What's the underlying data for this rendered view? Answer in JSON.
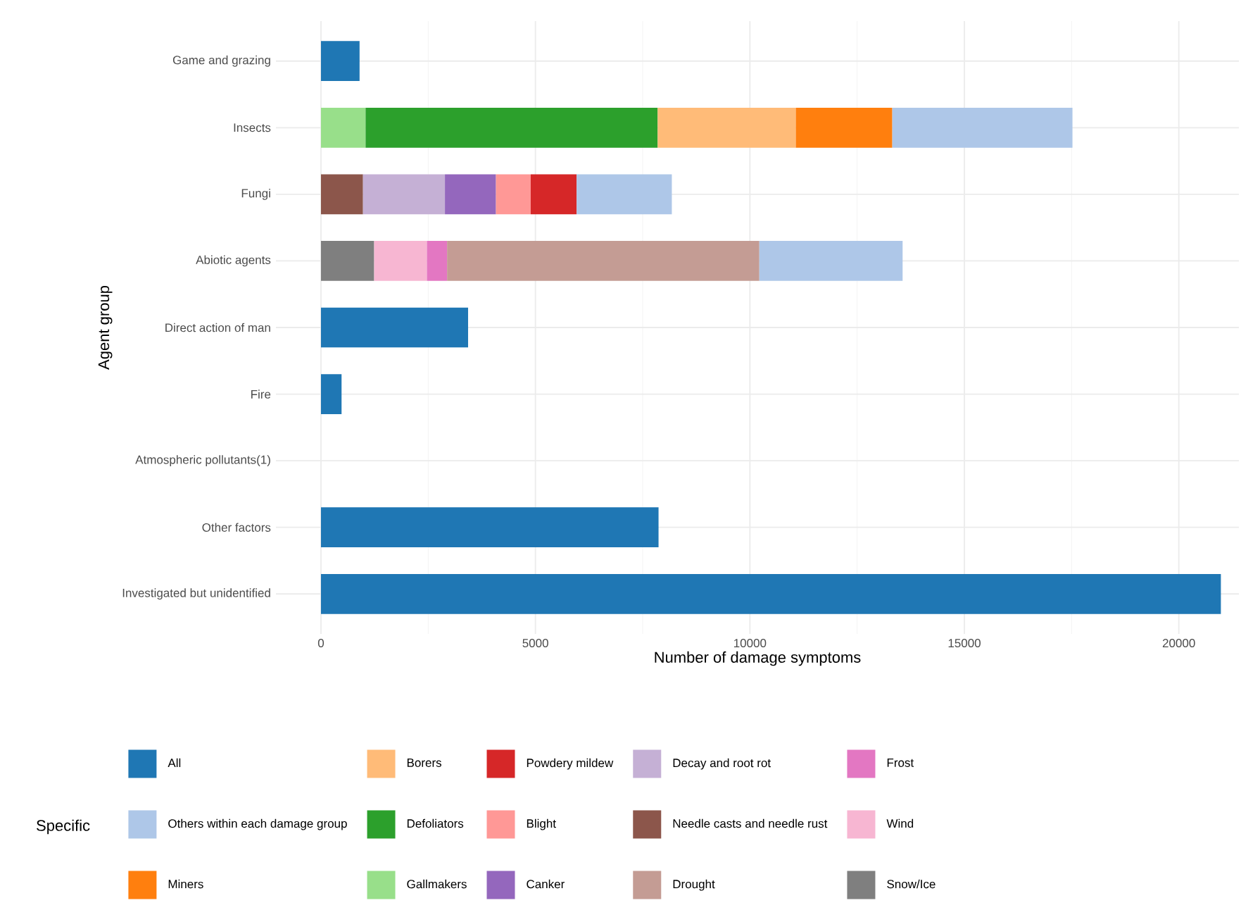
{
  "chart_data": {
    "type": "bar",
    "orientation": "horizontal",
    "stacked": true,
    "xlabel": "Number of damage symptoms",
    "ylabel": "Agent group",
    "legend_title": "Specific",
    "legend": "bottom",
    "grid": true,
    "categories": [
      "Game and grazing",
      "Insects",
      "Fungi",
      "Abiotic agents",
      "Direct action of man",
      "Fire",
      "Atmospheric pollutants(1)",
      "Other factors",
      "Investigated but unidentified"
    ],
    "xlim": [
      -1050,
      21400
    ],
    "xticks": [
      0,
      5000,
      10000,
      15000,
      20000
    ],
    "series": [
      {
        "name": "Snow/Ice",
        "color": "#7f7f7f",
        "values": [
          null,
          null,
          null,
          1240,
          null,
          null,
          null,
          null,
          null
        ]
      },
      {
        "name": "Wind",
        "color": "#f7b6d2",
        "values": [
          null,
          null,
          null,
          1230,
          null,
          null,
          null,
          null,
          null
        ]
      },
      {
        "name": "Frost",
        "color": "#e377c2",
        "values": [
          null,
          null,
          null,
          470,
          null,
          null,
          null,
          null,
          null
        ]
      },
      {
        "name": "Drought",
        "color": "#c49c94",
        "values": [
          null,
          null,
          null,
          7280,
          null,
          null,
          null,
          null,
          null
        ]
      },
      {
        "name": "Needle casts and needle rust",
        "color": "#8c564b",
        "values": [
          null,
          null,
          980,
          null,
          null,
          null,
          null,
          null,
          null
        ]
      },
      {
        "name": "Decay and root rot",
        "color": "#c5b0d5",
        "values": [
          null,
          null,
          1910,
          null,
          null,
          null,
          null,
          null,
          null
        ]
      },
      {
        "name": "Canker",
        "color": "#9467bd",
        "values": [
          null,
          null,
          1190,
          null,
          null,
          null,
          null,
          null,
          null
        ]
      },
      {
        "name": "Blight",
        "color": "#ff9896",
        "values": [
          null,
          null,
          810,
          null,
          null,
          null,
          null,
          null,
          null
        ]
      },
      {
        "name": "Powdery mildew",
        "color": "#d62728",
        "values": [
          null,
          null,
          1070,
          null,
          null,
          null,
          null,
          null,
          null
        ]
      },
      {
        "name": "Gallmakers",
        "color": "#98df8a",
        "values": [
          null,
          1040,
          null,
          null,
          null,
          null,
          null,
          null,
          null
        ]
      },
      {
        "name": "Defoliators",
        "color": "#2ca02c",
        "values": [
          null,
          6810,
          null,
          null,
          null,
          null,
          null,
          null,
          null
        ]
      },
      {
        "name": "Borers",
        "color": "#ffbb78",
        "values": [
          null,
          3220,
          null,
          null,
          null,
          null,
          null,
          null,
          null
        ]
      },
      {
        "name": "Miners",
        "color": "#ff7f0e",
        "values": [
          null,
          2250,
          null,
          null,
          null,
          null,
          null,
          null,
          null
        ]
      },
      {
        "name": "Others within each damage group",
        "color": "#aec7e8",
        "values": [
          null,
          4200,
          2220,
          3340,
          null,
          null,
          null,
          null,
          null
        ]
      },
      {
        "name": "All",
        "color": "#1f77b4",
        "values": [
          900,
          null,
          null,
          null,
          3430,
          480,
          null,
          7870,
          20980
        ]
      }
    ]
  }
}
